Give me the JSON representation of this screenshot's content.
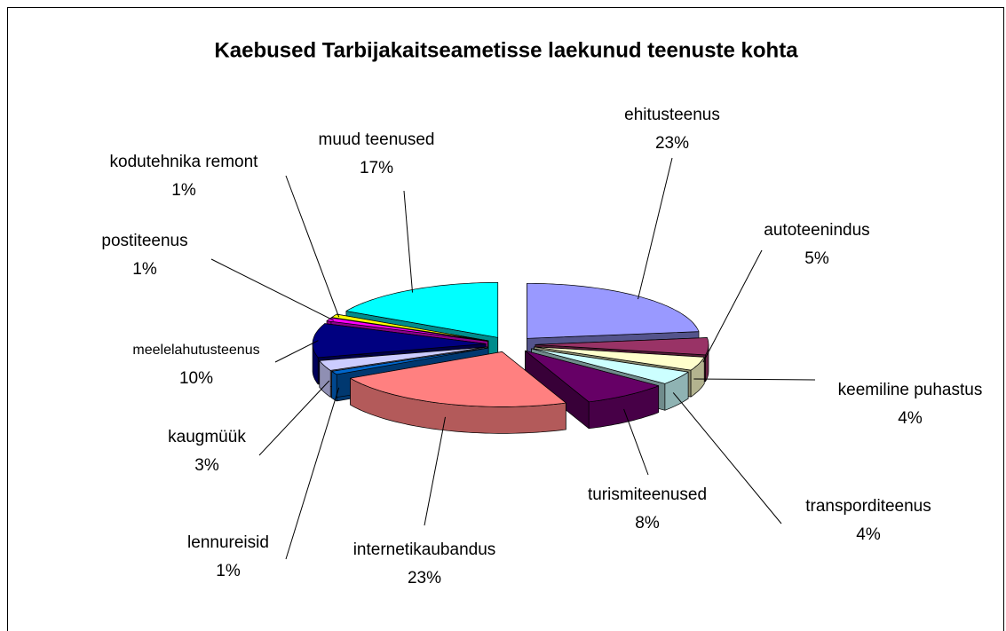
{
  "chart_data": {
    "type": "pie3d",
    "title": "Kaebused Tarbijakaitseametisse laekunud teenuste kohta",
    "categories": [
      "ehitusteenus",
      "autoteenindus",
      "keemiline puhastus",
      "transporditeenus",
      "turismiteenused",
      "internetikaubandus",
      "lennureisid",
      "kaugmüük",
      "meelelahutusteenus",
      "postiteenus",
      "kodutehnika remont",
      "muud teenused"
    ],
    "values": [
      23,
      5,
      4,
      4,
      8,
      23,
      1,
      3,
      10,
      1,
      1,
      17
    ],
    "value_labels": [
      "23%",
      "5%",
      "4%",
      "4%",
      "8%",
      "23%",
      "1%",
      "3%",
      "10%",
      "1%",
      "1%",
      "17%"
    ],
    "colors": [
      "#9999ff",
      "#993366",
      "#ffffcc",
      "#ccffff",
      "#660066",
      "#ff8080",
      "#0066cc",
      "#ccccff",
      "#000080",
      "#ff00ff",
      "#ffff00",
      "#00ffff"
    ]
  }
}
